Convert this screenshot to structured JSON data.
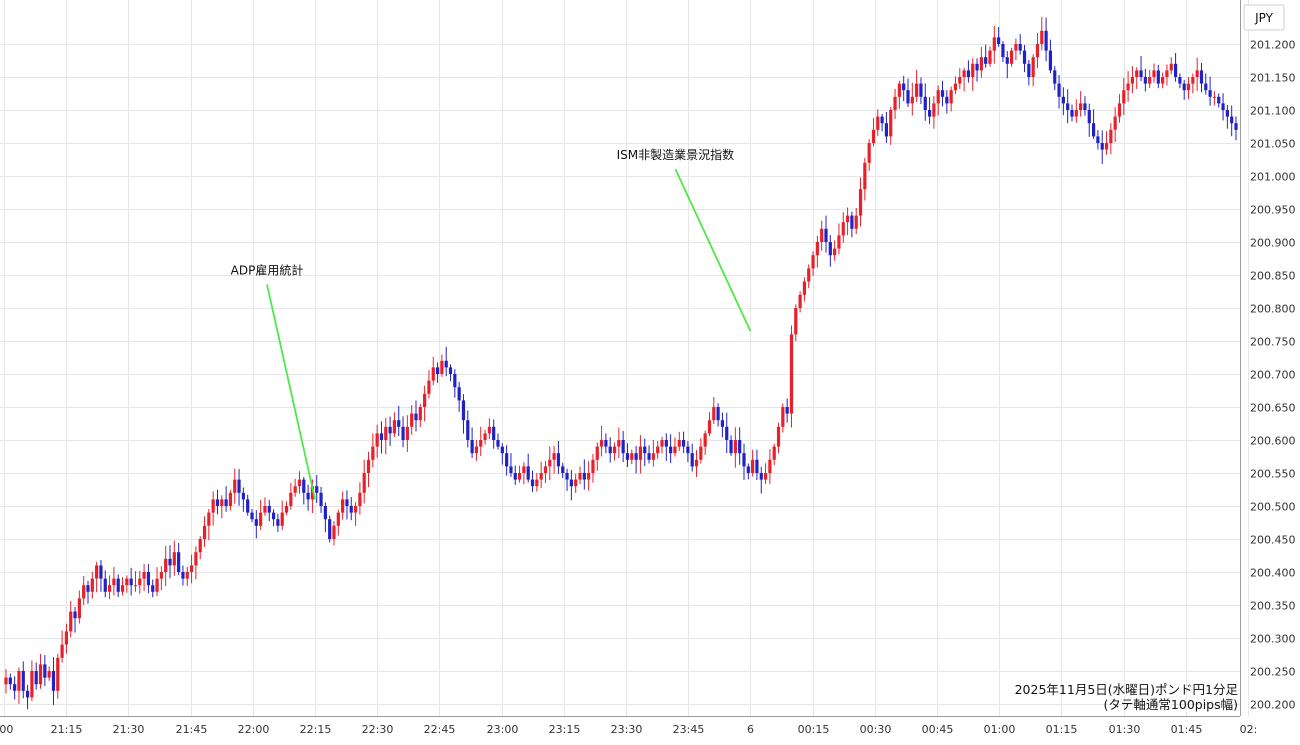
{
  "chart_data": {
    "type": "candlestick",
    "currency_label": "JPY",
    "ylim": [
      200.18,
      201.265
    ],
    "y_ticks": [
      "200.200",
      "200.250",
      "200.300",
      "200.350",
      "200.400",
      "200.450",
      "200.500",
      "200.550",
      "200.600",
      "200.650",
      "200.700",
      "200.750",
      "200.800",
      "200.850",
      "200.900",
      "200.950",
      "201.000",
      "201.050",
      "201.100",
      "201.150",
      "201.200"
    ],
    "x_ticks": [
      ":00",
      "21:15",
      "21:30",
      "21:45",
      "22:00",
      "22:15",
      "22:30",
      "22:45",
      "23:00",
      "23:15",
      "23:30",
      "23:45",
      "6",
      "00:15",
      "00:30",
      "00:45",
      "01:00",
      "01:15",
      "01:30",
      "01:45",
      "02:"
    ],
    "up_color": "#e8202a",
    "down_color": "#2121c8",
    "annotation_color": "#4de84a",
    "annotations": [
      {
        "label": "ADP雇用統計",
        "time": "22:15",
        "price": 200.51
      },
      {
        "label": "ISM非製造業景況指数",
        "time": "00:00",
        "price": 200.765
      }
    ],
    "caption_line1": "2025年11月5日(水曜日)ポンド円1分足",
    "caption_line2": "(タテ軸通常100pips幅)",
    "closes": [
      200.24,
      200.23,
      200.22,
      200.25,
      200.22,
      200.21,
      200.25,
      200.23,
      200.26,
      200.24,
      200.25,
      200.22,
      200.27,
      200.29,
      200.31,
      200.34,
      200.33,
      200.36,
      200.38,
      200.37,
      200.39,
      200.41,
      200.39,
      200.37,
      200.38,
      200.39,
      200.37,
      200.38,
      200.39,
      200.38,
      200.38,
      200.39,
      200.4,
      200.38,
      200.37,
      200.39,
      200.4,
      200.42,
      200.41,
      200.43,
      200.4,
      200.39,
      200.4,
      200.41,
      200.43,
      200.45,
      200.47,
      200.49,
      200.51,
      200.5,
      200.51,
      200.5,
      200.52,
      200.54,
      200.52,
      200.51,
      200.49,
      200.48,
      200.47,
      200.49,
      200.5,
      200.49,
      200.48,
      200.47,
      200.49,
      200.5,
      200.52,
      200.53,
      200.54,
      200.52,
      200.51,
      200.53,
      200.52,
      200.5,
      200.48,
      200.45,
      200.47,
      200.49,
      200.51,
      200.5,
      200.49,
      200.5,
      200.52,
      200.55,
      200.57,
      200.59,
      200.61,
      200.6,
      200.62,
      200.61,
      200.63,
      200.62,
      200.6,
      200.62,
      200.64,
      200.63,
      200.65,
      200.67,
      200.69,
      200.71,
      200.7,
      200.72,
      200.71,
      200.7,
      200.68,
      200.66,
      200.63,
      200.6,
      200.58,
      200.59,
      200.6,
      200.61,
      200.62,
      200.6,
      200.59,
      200.58,
      200.56,
      200.55,
      200.54,
      200.55,
      200.56,
      200.54,
      200.53,
      200.54,
      200.55,
      200.56,
      200.57,
      200.58,
      200.56,
      200.55,
      200.54,
      200.53,
      200.54,
      200.55,
      200.54,
      200.55,
      200.57,
      200.59,
      200.6,
      200.59,
      200.58,
      200.59,
      200.6,
      200.58,
      200.57,
      200.58,
      200.57,
      200.59,
      200.58,
      200.57,
      200.58,
      200.59,
      200.6,
      200.59,
      200.58,
      200.59,
      200.6,
      200.59,
      200.58,
      200.56,
      200.57,
      200.59,
      200.61,
      200.63,
      200.65,
      200.63,
      200.62,
      200.6,
      200.58,
      200.6,
      200.58,
      200.56,
      200.55,
      200.57,
      200.55,
      200.54,
      200.55,
      200.57,
      200.59,
      200.62,
      200.65,
      200.64,
      200.76,
      200.8,
      200.82,
      200.84,
      200.86,
      200.88,
      200.9,
      200.92,
      200.9,
      200.88,
      200.89,
      200.91,
      200.93,
      200.94,
      200.92,
      200.94,
      200.98,
      201.02,
      201.05,
      201.07,
      201.09,
      201.08,
      201.06,
      201.1,
      201.12,
      201.14,
      201.13,
      201.11,
      201.12,
      201.14,
      201.12,
      201.1,
      201.09,
      201.11,
      201.13,
      201.12,
      201.11,
      201.13,
      201.14,
      201.15,
      201.16,
      201.15,
      201.17,
      201.16,
      201.18,
      201.17,
      201.19,
      201.21,
      201.2,
      201.18,
      201.17,
      201.19,
      201.2,
      201.19,
      201.17,
      201.15,
      201.18,
      201.2,
      201.22,
      201.19,
      201.16,
      201.14,
      201.12,
      201.11,
      201.1,
      201.09,
      201.1,
      201.11,
      201.1,
      201.08,
      201.06,
      201.05,
      201.04,
      201.05,
      201.07,
      201.09,
      201.11,
      201.13,
      201.14,
      201.15,
      201.16,
      201.15,
      201.14,
      201.15,
      201.16,
      201.14,
      201.15,
      201.16,
      201.17,
      201.15,
      201.14,
      201.13,
      201.14,
      201.15,
      201.16,
      201.14,
      201.13,
      201.12,
      201.12,
      201.11,
      201.1,
      201.09,
      201.08,
      201.07
    ]
  }
}
